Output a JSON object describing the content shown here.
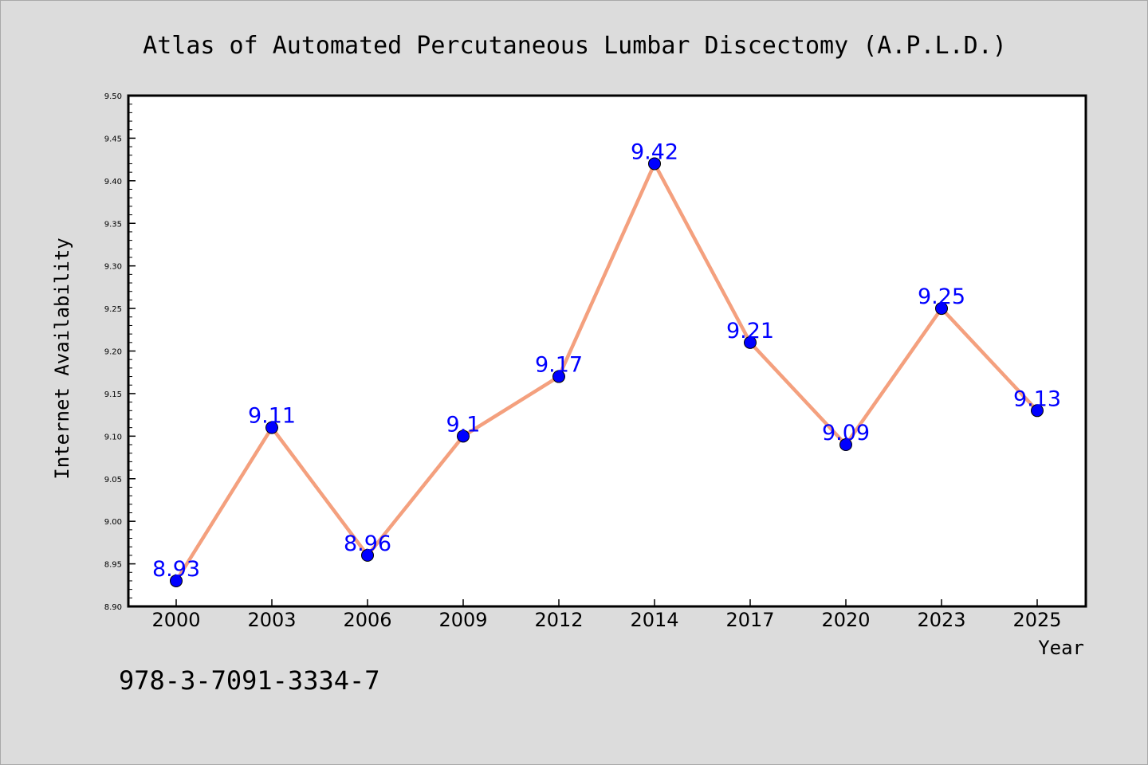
{
  "chart_data": {
    "type": "line",
    "title": "Atlas of Automated Percutaneous Lumbar Discectomy (A.P.L.D.)",
    "xlabel": "Year",
    "ylabel": "Internet Availability",
    "categories": [
      "2000",
      "2003",
      "2006",
      "2009",
      "2012",
      "2014",
      "2017",
      "2020",
      "2023",
      "2025"
    ],
    "series": [
      {
        "values": [
          8.93,
          9.11,
          8.96,
          9.1,
          9.17,
          9.42,
          9.21,
          9.09,
          9.25,
          9.13
        ],
        "data_labels": [
          "8.93",
          "9.11",
          "8.96",
          "9.1",
          "9.17",
          "9.42",
          "9.21",
          "9.09",
          "9.25",
          "9.13"
        ]
      }
    ],
    "ylim": [
      8.9,
      9.5
    ],
    "yticks": [
      "8.90",
      "8.95",
      "9.00",
      "9.05",
      "9.10",
      "9.15",
      "9.20",
      "9.25",
      "9.30",
      "9.35",
      "9.40",
      "9.45",
      "9.50"
    ],
    "grid": false,
    "line_color": "#f4a07e",
    "marker_color": "#0000ff",
    "label_color": "#0000ff",
    "background_color": "#dcdcdc",
    "plot_background_color": "#ffffff"
  },
  "footer": {
    "isbn": "978-3-7091-3334-7"
  }
}
